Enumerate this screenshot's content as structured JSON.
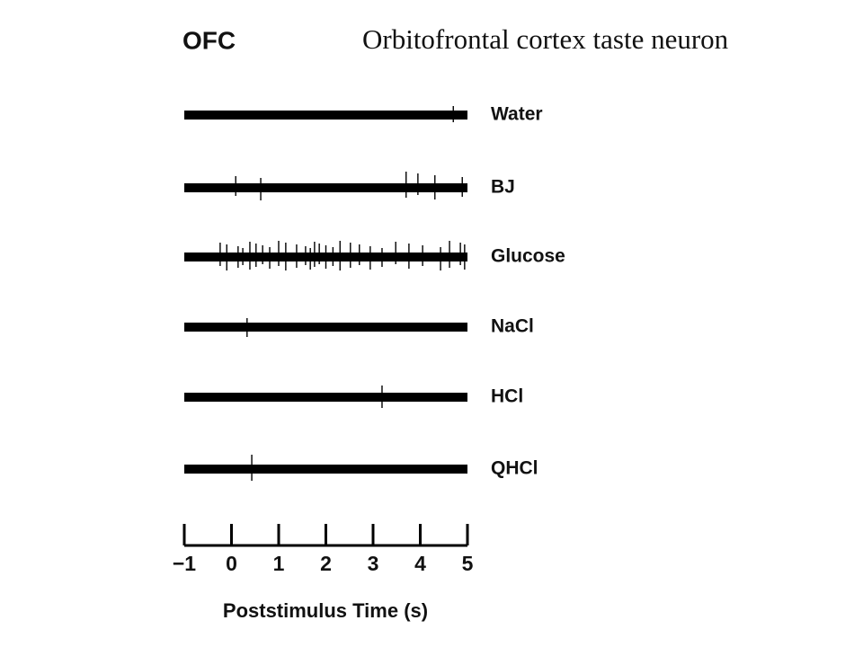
{
  "chart_data": {
    "type": "spike-train",
    "title": "OFC",
    "subtitle": "Orbitofrontal cortex taste neuron",
    "x_label": "Poststimulus Time (s)",
    "color": "#000000",
    "xlim": [
      -1,
      5
    ],
    "xticks": [
      {
        "value": -1,
        "label": "−1"
      },
      0,
      1,
      2,
      3,
      4,
      5
    ],
    "series": [
      {
        "name": "Water",
        "spikes": [
          4.7
        ]
      },
      {
        "name": "BJ",
        "spikes": [
          0.09,
          0.62,
          3.7,
          3.95,
          4.31,
          4.89
        ]
      },
      {
        "name": "Glucose",
        "spikes": [
          -0.24,
          -0.1,
          0.14,
          0.24,
          0.39,
          0.52,
          0.66,
          0.81,
          1.0,
          1.15,
          1.38,
          1.57,
          1.67,
          1.76,
          1.86,
          2.0,
          2.15,
          2.3,
          2.52,
          2.71,
          2.94,
          3.19,
          3.48,
          3.76,
          4.05,
          4.43,
          4.62,
          4.85,
          4.94
        ]
      },
      {
        "name": "NaCl",
        "spikes": [
          0.33
        ]
      },
      {
        "name": "HCl",
        "spikes": [
          3.19
        ]
      },
      {
        "name": "QHCl",
        "spikes": [
          0.43
        ]
      }
    ]
  }
}
